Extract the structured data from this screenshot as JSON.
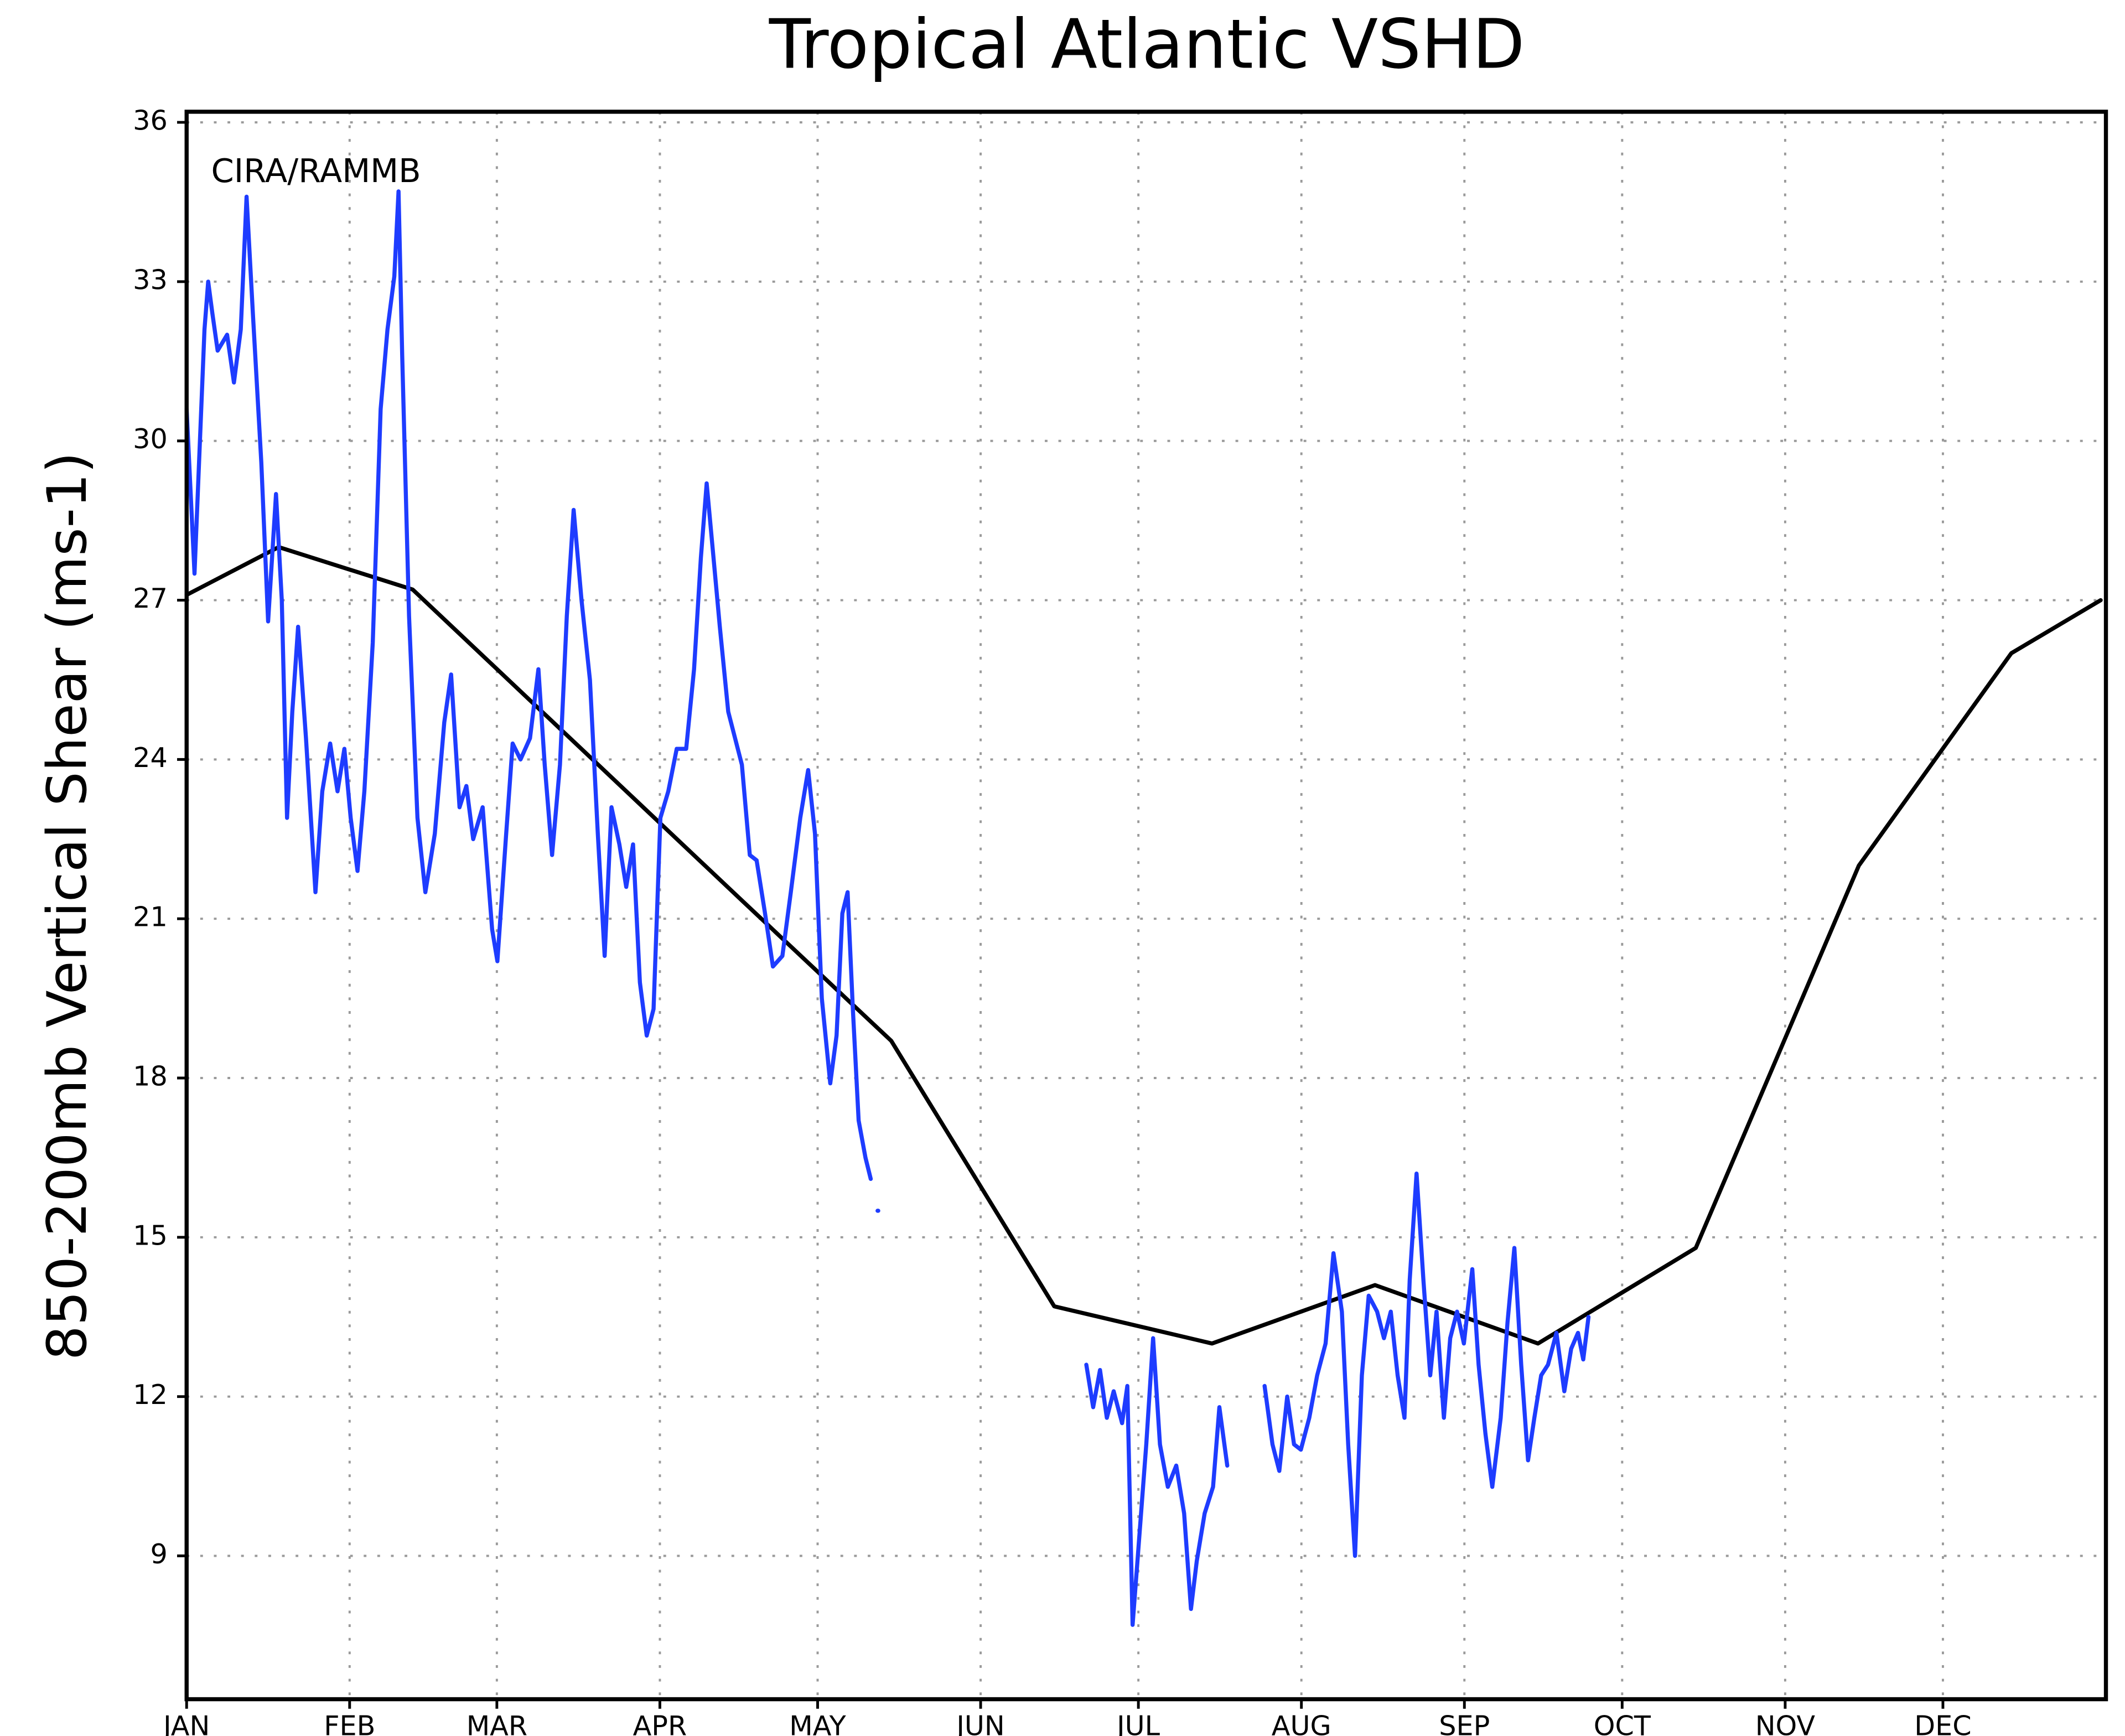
{
  "chart_data": {
    "type": "line",
    "title": "Tropical Atlantic VSHD",
    "ylabel": "850-200mb Vertical Shear (ms-1)",
    "annotation": "CIRA/RAMMB",
    "xlim": [
      0,
      365
    ],
    "xticks": [
      {
        "value": 0,
        "label": "JAN"
      },
      {
        "value": 31,
        "label": "FEB"
      },
      {
        "value": 59,
        "label": "MAR"
      },
      {
        "value": 90,
        "label": "APR"
      },
      {
        "value": 120,
        "label": "MAY"
      },
      {
        "value": 151,
        "label": "JUN"
      },
      {
        "value": 181,
        "label": "JUL"
      },
      {
        "value": 212,
        "label": "AUG"
      },
      {
        "value": 243,
        "label": "SEP"
      },
      {
        "value": 273,
        "label": "OCT"
      },
      {
        "value": 304,
        "label": "NOV"
      },
      {
        "value": 334,
        "label": "DEC"
      }
    ],
    "ylim": [
      6.3,
      36.2
    ],
    "yticks": [
      9,
      12,
      15,
      18,
      21,
      24,
      27,
      30,
      33,
      36
    ],
    "grid": true,
    "series": [
      {
        "color": "#000000",
        "x": [
          0,
          17.5,
          43,
          74,
          105,
          134,
          165,
          195,
          226,
          257,
          287,
          318,
          347,
          364
        ],
        "values": [
          27.1,
          28.0,
          27.2,
          24.3,
          21.4,
          18.7,
          13.7,
          13.0,
          14.1,
          13.0,
          14.8,
          22.0,
          26.0,
          27.0
        ]
      },
      {
        "color": "#1e3cff",
        "x": [
          0,
          1.5,
          3.4,
          4.1,
          4.9,
          5.9,
          7.7,
          9.0,
          10.3,
          11.4,
          12.6,
          14.2,
          15.5,
          17.0,
          18.1,
          19.1,
          20.1,
          21.2,
          22.7,
          24.5,
          25.8,
          27.3,
          28.7,
          30.0,
          31.2,
          32.5,
          33.8,
          35.4,
          36.9,
          38.2,
          39.5,
          40.3,
          41.0,
          42.3,
          43.9,
          45.4,
          47.2,
          49.0,
          50.3,
          51.9,
          53.2,
          54.5,
          56.3,
          58.1,
          59.1,
          60.7,
          62.0,
          63.5,
          65.3,
          66.9,
          68.1,
          69.5,
          71.0,
          72.3,
          73.6,
          75.1,
          76.7,
          78.2,
          79.5,
          80.8,
          82.3,
          83.6,
          84.9,
          86.2,
          87.5,
          88.8,
          90.1,
          91.6,
          93.2,
          95.0,
          96.5,
          97.8,
          98.9,
          100.2,
          101.4,
          103.0,
          104.3,
          105.6,
          107.1,
          108.4,
          110.0,
          111.5,
          113.3,
          114.9,
          116.7,
          118.2,
          119.5,
          120.8,
          122.4,
          123.6,
          124.7,
          125.7,
          126.7,
          127.8,
          129.1,
          130.1,
          null,
          131.4,
          null,
          171.1,
          172.4,
          173.7,
          175.0,
          176.3,
          177.9,
          178.9,
          179.9,
          180.9,
          182.5,
          183.8,
          185.1,
          186.6,
          188.2,
          189.7,
          191.0,
          192.1,
          193.6,
          195.2,
          196.4,
          197.9,
          null,
          205.0,
          206.5,
          207.8,
          209.3,
          210.6,
          211.9,
          213.5,
          215.0,
          216.6,
          218.1,
          219.7,
          220.9,
          222.2,
          223.5,
          224.8,
          226.4,
          227.7,
          229.0,
          230.3,
          231.6,
          232.6,
          233.9,
          235.2,
          236.5,
          237.7,
          239.1,
          240.3,
          241.6,
          242.9,
          244.5,
          245.7,
          247.0,
          248.3,
          249.9,
          251.2,
          252.5,
          253.8,
          255.1,
          256.3,
          257.6,
          258.9,
          260.5,
          262.0,
          263.3,
          264.6,
          265.6,
          266.6
        ],
        "values": [
          30.6,
          27.5,
          32.1,
          33.0,
          32.4,
          31.7,
          32.0,
          31.1,
          32.1,
          34.6,
          32.4,
          29.6,
          26.6,
          29.0,
          27.0,
          22.9,
          24.9,
          26.5,
          24.4,
          21.5,
          23.4,
          24.3,
          23.4,
          24.2,
          22.9,
          21.9,
          23.4,
          26.2,
          30.6,
          32.1,
          33.1,
          34.7,
          31.6,
          26.7,
          22.9,
          21.5,
          22.6,
          24.7,
          25.6,
          23.1,
          23.5,
          22.5,
          23.1,
          20.8,
          20.2,
          22.5,
          24.3,
          24.0,
          24.4,
          25.7,
          23.9,
          22.2,
          23.9,
          26.7,
          28.7,
          27.0,
          25.5,
          22.6,
          20.3,
          23.1,
          22.4,
          21.6,
          22.4,
          19.8,
          18.8,
          19.3,
          22.9,
          23.4,
          24.2,
          24.2,
          25.7,
          27.8,
          29.2,
          27.8,
          26.5,
          24.9,
          24.4,
          23.9,
          22.2,
          22.1,
          21.1,
          20.1,
          20.3,
          21.5,
          22.9,
          23.8,
          22.6,
          19.5,
          17.9,
          18.8,
          21.1,
          21.5,
          19.3,
          17.2,
          16.5,
          16.1,
          null,
          15.5,
          null,
          12.6,
          11.8,
          12.5,
          11.6,
          12.1,
          11.5,
          12.2,
          7.7,
          9.0,
          11.1,
          13.1,
          11.1,
          10.3,
          10.7,
          9.8,
          8.0,
          8.9,
          9.8,
          10.3,
          11.8,
          10.7,
          null,
          12.2,
          11.1,
          10.6,
          12.0,
          11.1,
          11.0,
          11.6,
          12.4,
          13.0,
          14.7,
          13.6,
          11.1,
          9.0,
          12.4,
          13.9,
          13.6,
          13.1,
          13.6,
          12.4,
          11.6,
          14.2,
          16.2,
          14.2,
          12.4,
          13.6,
          11.6,
          13.1,
          13.6,
          13.0,
          14.4,
          12.6,
          11.3,
          10.3,
          11.6,
          13.4,
          14.8,
          12.6,
          10.8,
          11.6,
          12.4,
          12.6,
          13.2,
          12.1,
          12.9,
          13.2,
          12.7,
          13.5
        ]
      }
    ]
  }
}
